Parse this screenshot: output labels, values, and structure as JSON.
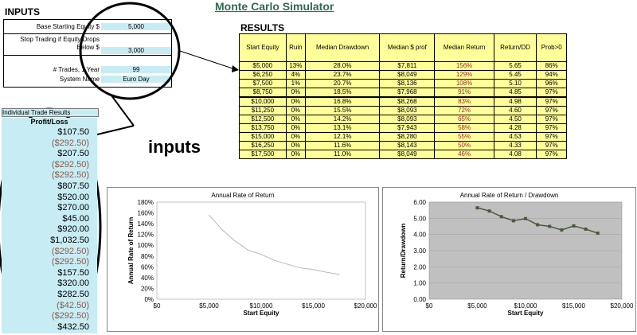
{
  "title": "Monte Carlo Simulator",
  "inputs": {
    "heading": "INPUTS",
    "base_label": "Base Starting Equity $",
    "base_value": "5,000",
    "stop_label_1": "Stop Trading if Equity Drops",
    "stop_label_2": "Below $",
    "stop_value": "3,000",
    "trades_label": "# Trades, 1 Year",
    "trades_value": "99",
    "system_label": "System Name",
    "system_value": "Euro Day"
  },
  "results": {
    "heading": "RESULTS",
    "columns": [
      "Start Equity",
      "Ruin",
      "Median Drawdown",
      "Median $ prof",
      "Median Return",
      "Return/DD",
      "Prob>0"
    ],
    "rows": [
      [
        "$5,000",
        "13%",
        "28.0%",
        "$7,811",
        "156%",
        "5.65",
        "86%"
      ],
      [
        "$6,250",
        "4%",
        "23.7%",
        "$8,049",
        "129%",
        "5.45",
        "94%"
      ],
      [
        "$7,500",
        "1%",
        "20.7%",
        "$8,136",
        "108%",
        "5.10",
        "96%"
      ],
      [
        "$8,750",
        "0%",
        "18.5%",
        "$7,968",
        "91%",
        "4.85",
        "97%"
      ],
      [
        "$10,000",
        "0%",
        "16.8%",
        "$8,268",
        "83%",
        "4.98",
        "97%"
      ],
      [
        "$11,250",
        "0%",
        "15.5%",
        "$8,093",
        "72%",
        "4.60",
        "97%"
      ],
      [
        "$12,500",
        "0%",
        "14.2%",
        "$8,093",
        "65%",
        "4.50",
        "97%"
      ],
      [
        "$13,750",
        "0%",
        "13.1%",
        "$7,943",
        "58%",
        "4.28",
        "97%"
      ],
      [
        "$15,000",
        "0%",
        "12.1%",
        "$8,280",
        "55%",
        "4.53",
        "97%"
      ],
      [
        "$16,250",
        "0%",
        "11.6%",
        "$8,143",
        "50%",
        "4.33",
        "97%"
      ],
      [
        "$17,500",
        "0%",
        "11.0%",
        "$8,049",
        "46%",
        "4.08",
        "97%"
      ]
    ]
  },
  "trades": {
    "heading": "Individual Trade Results",
    "subheading": "Profit/Loss",
    "values": [
      "$107.50",
      "($292.50)",
      "$207.50",
      "($292.50)",
      "($292.50)",
      "$807.50",
      "$520.00",
      "$270.00",
      "$45.00",
      "$920.00",
      "$1,032.50",
      "($292.50)",
      "($292.50)",
      "$157.50",
      "$320.00",
      "$282.50",
      "($42.50)",
      "($292.50)",
      "$432.50"
    ]
  },
  "callout_label": "inputs",
  "chart_data": [
    {
      "type": "line",
      "title": "Annual Rate of Return",
      "xlabel": "Start Equity",
      "ylabel": "Annual Rate of Return",
      "x": [
        5000,
        6250,
        7500,
        8750,
        10000,
        11250,
        12500,
        13750,
        15000,
        16250,
        17500
      ],
      "series": [
        {
          "values": [
            156,
            129,
            108,
            91,
            83,
            72,
            65,
            58,
            55,
            50,
            46
          ]
        }
      ],
      "xlim": [
        0,
        20000
      ],
      "ylim": [
        0,
        180
      ],
      "xticks": [
        "$0",
        "$5,000",
        "$10,000",
        "$15,000",
        "$20,000"
      ],
      "yticks": [
        "0%",
        "20%",
        "40%",
        "60%",
        "80%",
        "100%",
        "120%",
        "140%",
        "160%",
        "180%"
      ],
      "line_color": "#b8b8b8",
      "plot_bg": "#ffffff"
    },
    {
      "type": "line",
      "title": "Annual Rate of Return / Drawdown",
      "xlabel": "Start Equity",
      "ylabel": "Return/Drawdown",
      "x": [
        5000,
        6250,
        7500,
        8750,
        10000,
        11250,
        12500,
        13750,
        15000,
        16250,
        17500
      ],
      "series": [
        {
          "values": [
            5.65,
            5.45,
            5.1,
            4.85,
            4.98,
            4.6,
            4.5,
            4.28,
            4.53,
            4.33,
            4.08
          ]
        }
      ],
      "xlim": [
        0,
        20000
      ],
      "ylim": [
        0,
        6
      ],
      "xticks": [
        "$0",
        "$5,000",
        "$10,000",
        "$15,000",
        "$20,000"
      ],
      "yticks": [
        "0.00",
        "1.00",
        "2.00",
        "3.00",
        "4.00",
        "5.00",
        "6.00"
      ],
      "line_color": "#4a5a3a",
      "plot_bg": "#c0c0c0"
    }
  ]
}
